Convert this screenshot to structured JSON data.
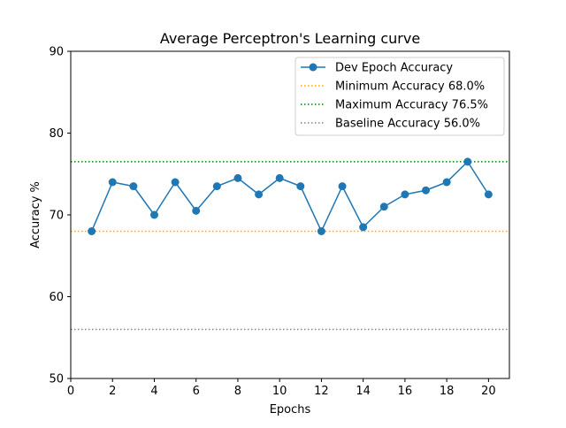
{
  "chart_data": {
    "type": "line",
    "title": "Average Perceptron's Learning curve",
    "xlabel": "Epochs",
    "ylabel": "Accuracy %",
    "xlim": [
      0,
      21
    ],
    "ylim": [
      50,
      90
    ],
    "x_ticks": [
      0,
      2,
      4,
      6,
      8,
      10,
      12,
      14,
      16,
      18,
      20
    ],
    "y_ticks": [
      50,
      60,
      70,
      80,
      90
    ],
    "grid": false,
    "legend_position": "top-right",
    "series": [
      {
        "name": "Dev Epoch Accuracy",
        "color": "#1f77b4",
        "marker": "circle",
        "x": [
          1,
          2,
          3,
          4,
          5,
          6,
          7,
          8,
          9,
          10,
          11,
          12,
          13,
          14,
          15,
          16,
          17,
          18,
          19,
          20
        ],
        "y": [
          68.0,
          74.0,
          73.5,
          70.0,
          74.0,
          70.5,
          73.5,
          74.5,
          72.5,
          74.5,
          73.5,
          68.0,
          73.5,
          68.5,
          71.0,
          72.5,
          73.0,
          74.0,
          76.5,
          72.5
        ]
      }
    ],
    "reference_lines": [
      {
        "name": "Minimum Accuracy 68.0%",
        "value": 68.0,
        "color": "#ffa500",
        "style": "dotted"
      },
      {
        "name": "Maximum Accuracy 76.5%",
        "value": 76.5,
        "color": "#008000",
        "style": "dotted"
      },
      {
        "name": "Baseline Accuracy 56.0%",
        "value": 56.0,
        "color": "#808080",
        "style": "dotted"
      }
    ]
  }
}
